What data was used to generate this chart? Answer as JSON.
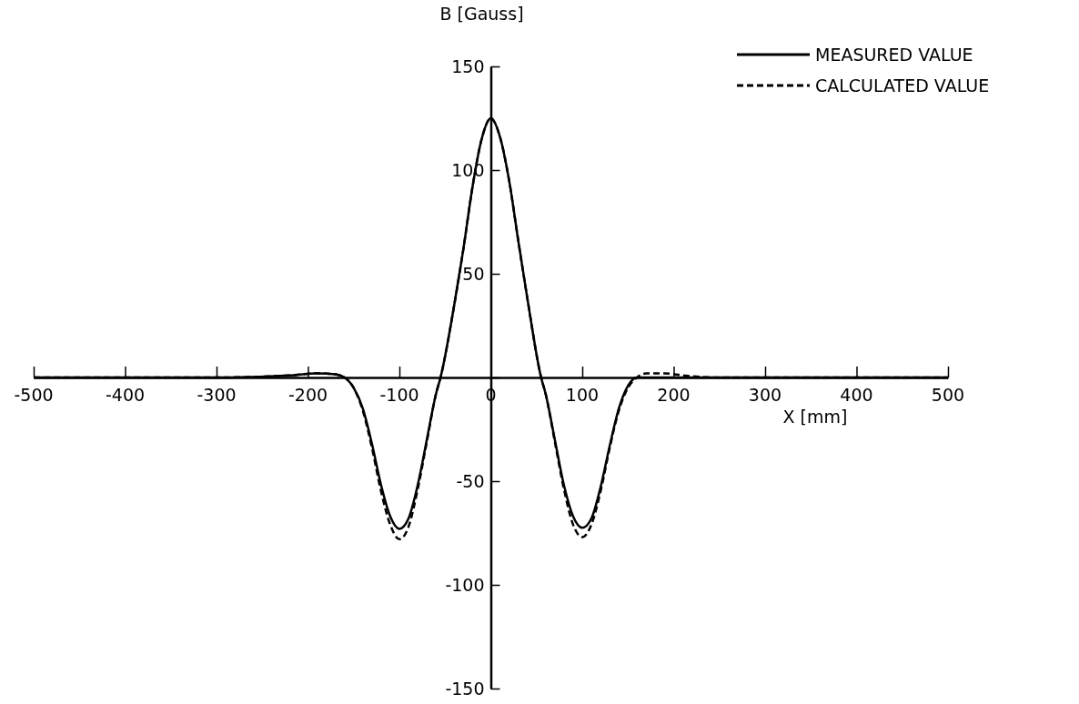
{
  "chart_data": {
    "type": "line",
    "xlabel": "X [mm]",
    "ylabel": "B [Gauss]",
    "xlim": [
      -500,
      500
    ],
    "ylim": [
      -150,
      150
    ],
    "xticks": [
      -500,
      -400,
      -300,
      -200,
      -100,
      0,
      100,
      200,
      300,
      400,
      500
    ],
    "yticks": [
      -150,
      -100,
      -50,
      {
        "value": 0,
        "label": null
      },
      50,
      100,
      150
    ],
    "legend": "top right",
    "grid": false,
    "series": [
      {
        "name": "MEASURED VALUE",
        "color": "#000000",
        "line_style": "solid",
        "x": [
          -500,
          -300,
          -220,
          -190,
          -170,
          -160,
          -150,
          -140,
          -130,
          -120,
          -110,
          -100,
          -90,
          -80,
          -70,
          -60,
          -55,
          -40,
          -30,
          -20,
          -10,
          0,
          10,
          20,
          30,
          40,
          55,
          60,
          70,
          80,
          90,
          100,
          110,
          120,
          130,
          140,
          150,
          160,
          200,
          500
        ],
        "values": [
          0,
          0,
          1,
          2,
          1.5,
          0,
          -5,
          -15,
          -32,
          -52,
          -67,
          -73,
          -68,
          -52,
          -30,
          -8,
          0,
          35,
          62,
          92,
          115,
          125,
          116,
          95,
          66,
          38,
          0,
          -8,
          -30,
          -52,
          -67,
          -72.5,
          -68,
          -53,
          -33,
          -15,
          -4,
          0,
          0,
          0
        ]
      },
      {
        "name": "CALCULATED VALUE",
        "color": "#000000",
        "line_style": "dashed",
        "x": [
          -500,
          -300,
          -220,
          -190,
          -170,
          -160,
          -150,
          -140,
          -130,
          -120,
          -110,
          -100,
          -90,
          -80,
          -70,
          -60,
          -55,
          -40,
          -30,
          -20,
          -10,
          0,
          10,
          20,
          30,
          40,
          55,
          60,
          70,
          80,
          90,
          100,
          110,
          120,
          130,
          140,
          150,
          160,
          170,
          190,
          210,
          250,
          500
        ],
        "values": [
          0,
          0,
          1,
          2,
          1.5,
          0,
          -5,
          -16,
          -34,
          -55,
          -71,
          -78,
          -72,
          -54,
          -31,
          -8,
          0,
          35,
          62,
          92,
          115,
          125,
          116,
          95,
          66,
          38,
          0,
          -8,
          -31,
          -54,
          -71,
          -77,
          -71,
          -55,
          -34,
          -16,
          -5,
          0,
          2,
          2,
          1,
          0,
          0
        ]
      }
    ]
  }
}
